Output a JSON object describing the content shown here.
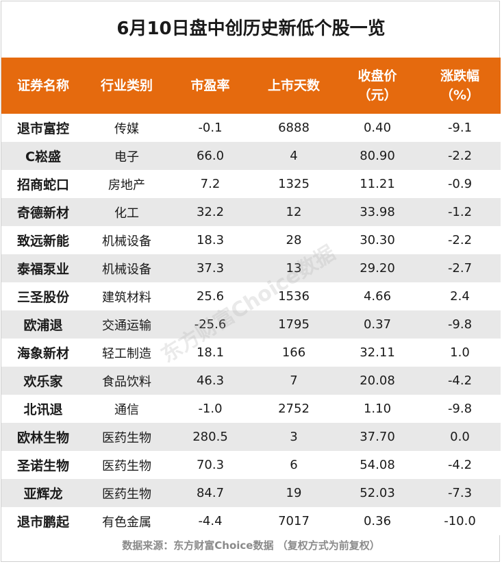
{
  "title": "6月10日盘中创历史新低个股一览",
  "headers": {
    "name": "证券名称",
    "industry": "行业类别",
    "pe": "市盈率",
    "days": "上市天数",
    "close_line1": "收盘价",
    "close_line2": "（元）",
    "change_line1": "涨跌幅",
    "change_line2": "（%）"
  },
  "rows": [
    {
      "name": "退市富控",
      "industry": "传媒",
      "pe": "-0.1",
      "days": "6888",
      "close": "0.40",
      "change": "-9.1"
    },
    {
      "name": "C崧盛",
      "industry": "电子",
      "pe": "66.0",
      "days": "4",
      "close": "80.90",
      "change": "-2.2"
    },
    {
      "name": "招商蛇口",
      "industry": "房地产",
      "pe": "7.2",
      "days": "1325",
      "close": "11.21",
      "change": "-0.9"
    },
    {
      "name": "奇德新材",
      "industry": "化工",
      "pe": "32.2",
      "days": "12",
      "close": "33.98",
      "change": "-1.2"
    },
    {
      "name": "致远新能",
      "industry": "机械设备",
      "pe": "18.3",
      "days": "28",
      "close": "30.30",
      "change": "-2.2"
    },
    {
      "name": "泰福泵业",
      "industry": "机械设备",
      "pe": "37.3",
      "days": "13",
      "close": "29.20",
      "change": "-2.7"
    },
    {
      "name": "三圣股份",
      "industry": "建筑材料",
      "pe": "25.6",
      "days": "1536",
      "close": "4.66",
      "change": "2.4"
    },
    {
      "name": "欧浦退",
      "industry": "交通运输",
      "pe": "-25.6",
      "days": "1795",
      "close": "0.37",
      "change": "-9.8"
    },
    {
      "name": "海象新材",
      "industry": "轻工制造",
      "pe": "18.1",
      "days": "166",
      "close": "32.11",
      "change": "1.0"
    },
    {
      "name": "欢乐家",
      "industry": "食品饮料",
      "pe": "46.3",
      "days": "7",
      "close": "20.08",
      "change": "-4.2"
    },
    {
      "name": "北讯退",
      "industry": "通信",
      "pe": "-1.0",
      "days": "2752",
      "close": "1.10",
      "change": "-9.8"
    },
    {
      "name": "欧林生物",
      "industry": "医药生物",
      "pe": "280.5",
      "days": "3",
      "close": "37.70",
      "change": "0.0"
    },
    {
      "name": "圣诺生物",
      "industry": "医药生物",
      "pe": "70.3",
      "days": "6",
      "close": "54.08",
      "change": "-4.2"
    },
    {
      "name": "亚辉龙",
      "industry": "医药生物",
      "pe": "84.7",
      "days": "19",
      "close": "52.03",
      "change": "-7.3"
    },
    {
      "name": "退市鹏起",
      "industry": "有色金属",
      "pe": "-4.4",
      "days": "7017",
      "close": "0.36",
      "change": "-10.0"
    }
  ],
  "source": "数据来源：东方财富Choice数据 （复权方式为前复权）",
  "watermark": "东方财富Choice数据",
  "colors": {
    "header_bg": "#e56a0e",
    "stripe_bg": "#e8e8e8"
  }
}
